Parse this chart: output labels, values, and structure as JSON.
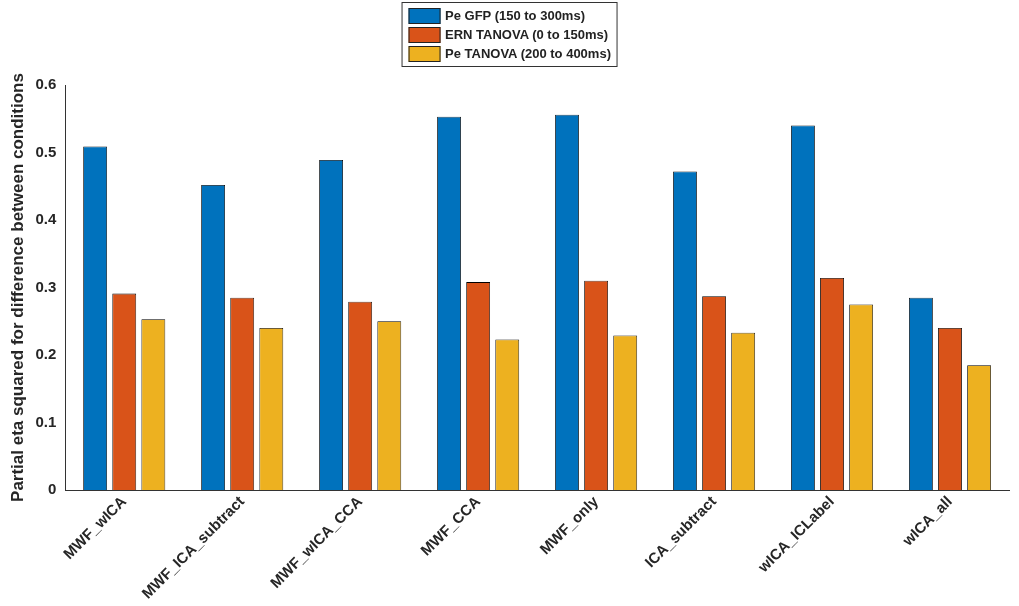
{
  "chart_data": {
    "type": "bar",
    "ylabel": "Partial eta squared for difference between conditions",
    "categories": [
      "MWF_wICA",
      "MWF_ICA_subtract",
      "MWF_wICA_CCA",
      "MWF_CCA",
      "MWF_only",
      "ICA_subtract",
      "wICA_ICLabel",
      "wICA_all"
    ],
    "series": [
      {
        "name": "Pe GFP (150 to 300ms)",
        "color": "#0072bd",
        "values": [
          0.509,
          0.452,
          0.489,
          0.553,
          0.556,
          0.472,
          0.54,
          0.285
        ]
      },
      {
        "name": "ERN TANOVA (0 to 150ms)",
        "color": "#d95319",
        "values": [
          0.291,
          0.285,
          0.279,
          0.308,
          0.31,
          0.287,
          0.314,
          0.24
        ]
      },
      {
        "name": "Pe TANOVA (200 to 400ms)",
        "color": "#edb120",
        "values": [
          0.253,
          0.24,
          0.25,
          0.223,
          0.229,
          0.233,
          0.275,
          0.185
        ]
      }
    ],
    "ylim": [
      0,
      0.6
    ],
    "yticks": [
      0,
      0.1,
      0.2,
      0.3,
      0.4,
      0.5,
      0.6
    ],
    "grid": false,
    "legend": "top"
  }
}
